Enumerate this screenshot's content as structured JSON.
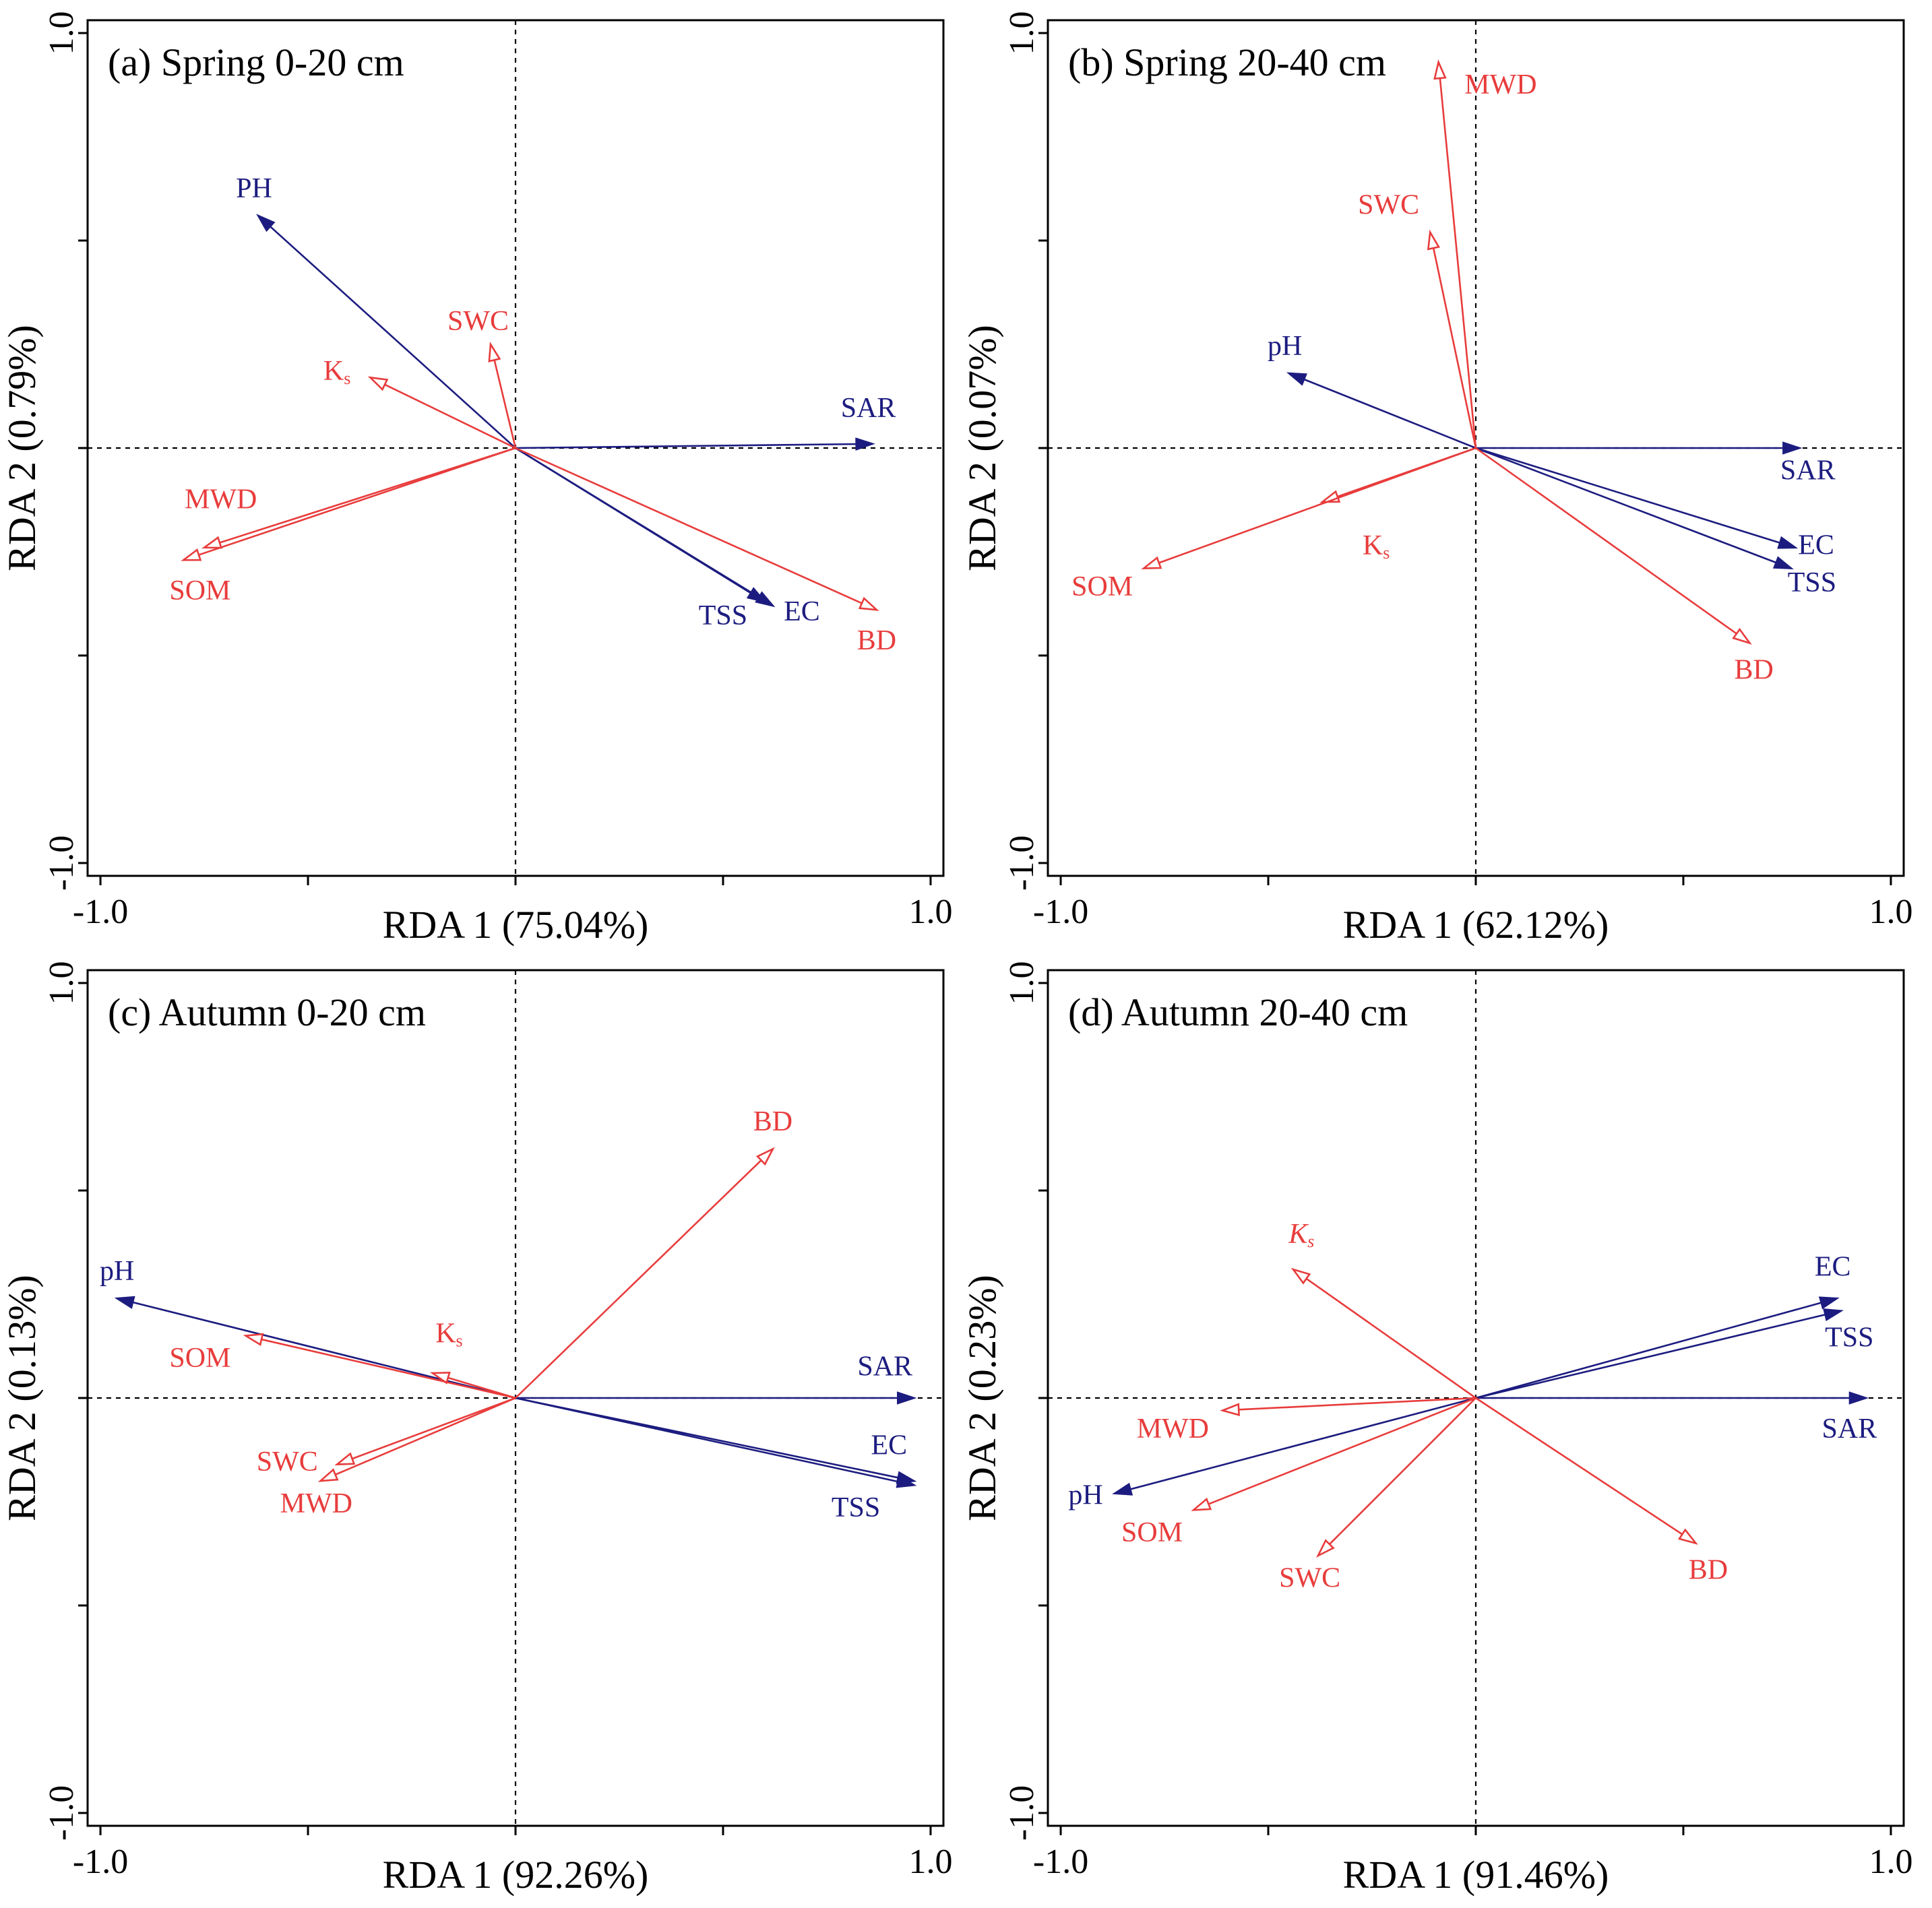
{
  "figure": {
    "colors": {
      "environment": "#e83c3c",
      "salinity": "#1c1c80",
      "axes": "#000000"
    }
  },
  "chart_data": [
    {
      "type": "biplot",
      "panel": "a",
      "title": "(a) Spring 0-20 cm",
      "xlabel": "RDA 1 (75.04%)",
      "ylabel": "RDA 2 (0.79%)",
      "xlim": [
        -1.0,
        1.0
      ],
      "ylim": [
        -1.0,
        1.0
      ],
      "tick_labels": {
        "xmin": "-1.0",
        "xmax": "1.0",
        "ymin": "-1.0",
        "ymax": "1.0"
      },
      "vectors": [
        {
          "label": "PH",
          "group": "salinity",
          "x": -0.62,
          "y": 0.56,
          "lx": -0.63,
          "ly": 0.62
        },
        {
          "label": "SAR",
          "group": "salinity",
          "x": 0.86,
          "y": 0.01,
          "lx": 0.85,
          "ly": 0.09
        },
        {
          "label": "TSS",
          "group": "salinity",
          "x": 0.6,
          "y": -0.37,
          "lx": 0.5,
          "ly": -0.41
        },
        {
          "label": "EC",
          "group": "salinity",
          "x": 0.62,
          "y": -0.38,
          "lx": 0.69,
          "ly": -0.4
        },
        {
          "label": "SWC",
          "group": "environment",
          "x": -0.06,
          "y": 0.25,
          "lx": -0.09,
          "ly": 0.3
        },
        {
          "label": "Ks",
          "sub": "s",
          "italic": false,
          "group": "environment",
          "x": -0.35,
          "y": 0.17,
          "lx": -0.43,
          "ly": 0.18
        },
        {
          "label": "MWD",
          "group": "environment",
          "x": -0.75,
          "y": -0.24,
          "lx": -0.71,
          "ly": -0.13
        },
        {
          "label": "SOM",
          "group": "environment",
          "x": -0.8,
          "y": -0.27,
          "lx": -0.76,
          "ly": -0.35
        },
        {
          "label": "BD",
          "group": "environment",
          "x": 0.87,
          "y": -0.39,
          "lx": 0.87,
          "ly": -0.47
        }
      ]
    },
    {
      "type": "biplot",
      "panel": "b",
      "title": "(b) Spring 20-40 cm",
      "xlabel": "RDA 1 (62.12%)",
      "ylabel": "RDA 2 (0.07%)",
      "xlim": [
        -1.0,
        1.0
      ],
      "ylim": [
        -1.0,
        1.0
      ],
      "tick_labels": {
        "xmin": "-1.0",
        "xmax": "1.0",
        "ymin": "-1.0",
        "ymax": "1.0"
      },
      "vectors": [
        {
          "label": "pH",
          "group": "salinity",
          "x": -0.45,
          "y": 0.18,
          "lx": -0.46,
          "ly": 0.24
        },
        {
          "label": "SAR",
          "group": "salinity",
          "x": 0.78,
          "y": 0.0,
          "lx": 0.8,
          "ly": -0.06
        },
        {
          "label": "EC",
          "group": "salinity",
          "x": 0.77,
          "y": -0.24,
          "lx": 0.82,
          "ly": -0.24
        },
        {
          "label": "TSS",
          "group": "salinity",
          "x": 0.76,
          "y": -0.29,
          "lx": 0.81,
          "ly": -0.33
        },
        {
          "label": "MWD",
          "group": "environment",
          "x": -0.09,
          "y": 0.93,
          "lx": 0.06,
          "ly": 0.87
        },
        {
          "label": "SWC",
          "group": "environment",
          "x": -0.11,
          "y": 0.52,
          "lx": -0.21,
          "ly": 0.58
        },
        {
          "label": "Ks",
          "sub": "s",
          "italic": false,
          "group": "environment",
          "x": -0.37,
          "y": -0.13,
          "lx": -0.24,
          "ly": -0.24
        },
        {
          "label": "SOM",
          "group": "environment",
          "x": -0.8,
          "y": -0.29,
          "lx": -0.9,
          "ly": -0.34
        },
        {
          "label": "BD",
          "group": "environment",
          "x": 0.66,
          "y": -0.47,
          "lx": 0.67,
          "ly": -0.54
        }
      ]
    },
    {
      "type": "biplot",
      "panel": "c",
      "title": "(c) Autumn 0-20 cm",
      "xlabel": "RDA 1 (92.26%)",
      "ylabel": "RDA 2 (0.13%)",
      "xlim": [
        -1.0,
        1.0
      ],
      "ylim": [
        -1.0,
        1.0
      ],
      "tick_labels": {
        "xmin": "-1.0",
        "xmax": "1.0",
        "ymin": "-1.0",
        "ymax": "1.0"
      },
      "vectors": [
        {
          "label": "pH",
          "group": "salinity",
          "x": -0.96,
          "y": 0.24,
          "lx": -0.96,
          "ly": 0.3
        },
        {
          "label": "SAR",
          "group": "salinity",
          "x": 0.96,
          "y": 0.0,
          "lx": 0.89,
          "ly": 0.07
        },
        {
          "label": "EC",
          "group": "salinity",
          "x": 0.96,
          "y": -0.2,
          "lx": 0.9,
          "ly": -0.12
        },
        {
          "label": "TSS",
          "group": "salinity",
          "x": 0.96,
          "y": -0.21,
          "lx": 0.82,
          "ly": -0.27
        },
        {
          "label": "BD",
          "group": "environment",
          "x": 0.62,
          "y": 0.6,
          "lx": 0.62,
          "ly": 0.66
        },
        {
          "label": "Ks",
          "sub": "s",
          "italic": false,
          "group": "environment",
          "x": -0.2,
          "y": 0.06,
          "lx": -0.16,
          "ly": 0.15
        },
        {
          "label": "SOM",
          "group": "environment",
          "x": -0.65,
          "y": 0.15,
          "lx": -0.76,
          "ly": 0.09
        },
        {
          "label": "SWC",
          "group": "environment",
          "x": -0.43,
          "y": -0.16,
          "lx": -0.55,
          "ly": -0.16
        },
        {
          "label": "MWD",
          "group": "environment",
          "x": -0.47,
          "y": -0.2,
          "lx": -0.48,
          "ly": -0.26
        }
      ]
    },
    {
      "type": "biplot",
      "panel": "d",
      "title": "(d) Autumn 20-40 cm",
      "xlabel": "RDA 1 (91.46%)",
      "ylabel": "RDA 2 (0.23%)",
      "xlim": [
        -1.0,
        1.0
      ],
      "ylim": [
        -1.0,
        1.0
      ],
      "tick_labels": {
        "xmin": "-1.0",
        "xmax": "1.0",
        "ymin": "-1.0",
        "ymax": "1.0"
      },
      "vectors": [
        {
          "label": "EC",
          "group": "salinity",
          "x": 0.87,
          "y": 0.24,
          "lx": 0.86,
          "ly": 0.31
        },
        {
          "label": "TSS",
          "group": "salinity",
          "x": 0.88,
          "y": 0.21,
          "lx": 0.9,
          "ly": 0.14
        },
        {
          "label": "SAR",
          "group": "salinity",
          "x": 0.94,
          "y": 0.0,
          "lx": 0.9,
          "ly": -0.08
        },
        {
          "label": "pH",
          "group": "salinity",
          "x": -0.87,
          "y": -0.23,
          "lx": -0.94,
          "ly": -0.24
        },
        {
          "label": "Ks",
          "sub": "s",
          "italic": true,
          "group": "environment",
          "x": -0.44,
          "y": 0.31,
          "lx": -0.42,
          "ly": 0.39
        },
        {
          "label": "MWD",
          "group": "environment",
          "x": -0.61,
          "y": -0.03,
          "lx": -0.73,
          "ly": -0.08
        },
        {
          "label": "SOM",
          "group": "environment",
          "x": -0.68,
          "y": -0.27,
          "lx": -0.78,
          "ly": -0.33
        },
        {
          "label": "SWC",
          "group": "environment",
          "x": -0.38,
          "y": -0.38,
          "lx": -0.4,
          "ly": -0.44
        },
        {
          "label": "BD",
          "group": "environment",
          "x": 0.53,
          "y": -0.35,
          "lx": 0.56,
          "ly": -0.42
        }
      ]
    }
  ]
}
